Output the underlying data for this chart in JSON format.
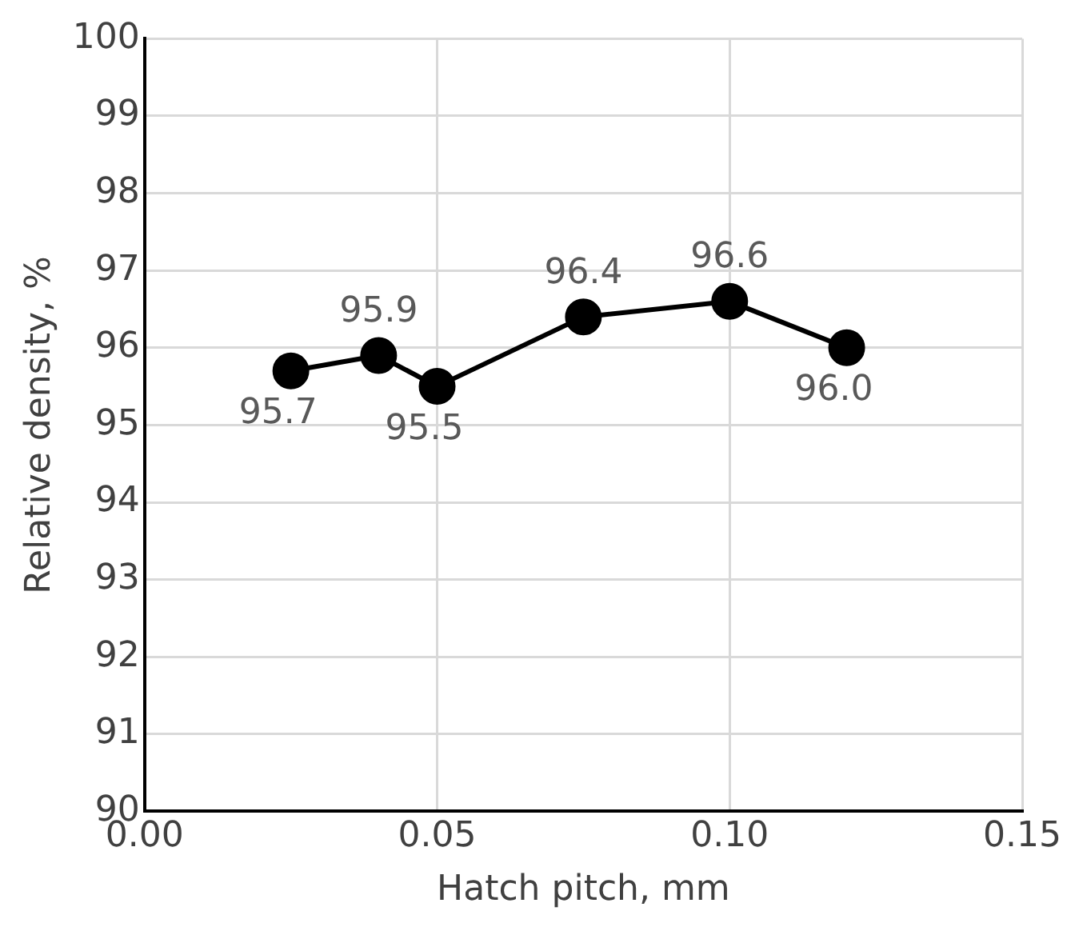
{
  "chart_data": {
    "type": "line",
    "xlabel": "Hatch pitch, mm",
    "ylabel": "Relative density, %",
    "x": [
      0.025,
      0.04,
      0.05,
      0.075,
      0.1,
      0.12
    ],
    "series": [
      {
        "color": "#000000",
        "values": [
          95.7,
          95.9,
          95.5,
          96.4,
          96.6,
          96.0
        ],
        "value_labels": [
          "95.7",
          "95.9",
          "95.5",
          "96.4",
          "96.6",
          "96.0"
        ]
      }
    ],
    "xlim": [
      0,
      0.15
    ],
    "xticks": [
      {
        "value": 0,
        "label": "0.00"
      },
      {
        "value": 0.05,
        "label": "0.05"
      },
      {
        "value": 0.1,
        "label": "0.10"
      },
      {
        "value": 0.15,
        "label": "0.15"
      }
    ],
    "ylim": [
      90,
      100
    ],
    "yticks": [
      90,
      91,
      92,
      93,
      94,
      95,
      96,
      97,
      98,
      99,
      100
    ],
    "grid": true,
    "legend": false,
    "marker": "circle",
    "line_style": "solid"
  }
}
